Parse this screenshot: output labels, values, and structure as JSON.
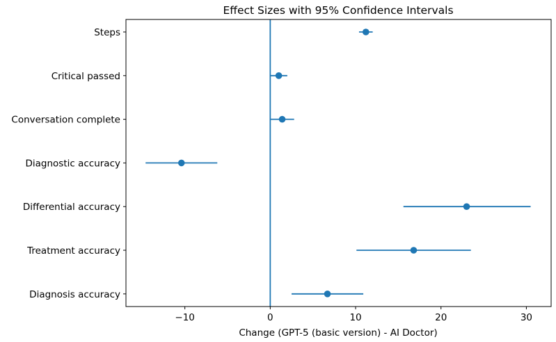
{
  "chart_data": {
    "type": "scatter",
    "title": "Effect Sizes with 95% Confidence Intervals",
    "xlabel": "Change (GPT-5 (basic version) - AI Doctor)",
    "ylabel": "",
    "xlim": [
      -16.9,
      32.9
    ],
    "xticks": [
      -10,
      0,
      10,
      20,
      30
    ],
    "xtick_labels": [
      "−10",
      "0",
      "10",
      "20",
      "30"
    ],
    "reference_line_x": 0,
    "color": "#1f77b4",
    "grid": false,
    "legend": "none",
    "categories": [
      "Steps",
      "Critical passed",
      "Conversation complete",
      "Diagnostic accuracy",
      "Differential accuracy",
      "Treatment accuracy",
      "Diagnosis accuracy"
    ],
    "points": [
      {
        "label": "Steps",
        "estimate": 11.2,
        "ci_low": 10.4,
        "ci_high": 12.0
      },
      {
        "label": "Critical passed",
        "estimate": 1.0,
        "ci_low": 0.0,
        "ci_high": 2.0
      },
      {
        "label": "Conversation complete",
        "estimate": 1.4,
        "ci_low": 0.0,
        "ci_high": 2.8
      },
      {
        "label": "Diagnostic accuracy",
        "estimate": -10.4,
        "ci_low": -14.6,
        "ci_high": -6.2
      },
      {
        "label": "Differential accuracy",
        "estimate": 23.0,
        "ci_low": 15.6,
        "ci_high": 30.5
      },
      {
        "label": "Treatment accuracy",
        "estimate": 16.8,
        "ci_low": 10.1,
        "ci_high": 23.5
      },
      {
        "label": "Diagnosis accuracy",
        "estimate": 6.7,
        "ci_low": 2.5,
        "ci_high": 10.9
      }
    ]
  }
}
